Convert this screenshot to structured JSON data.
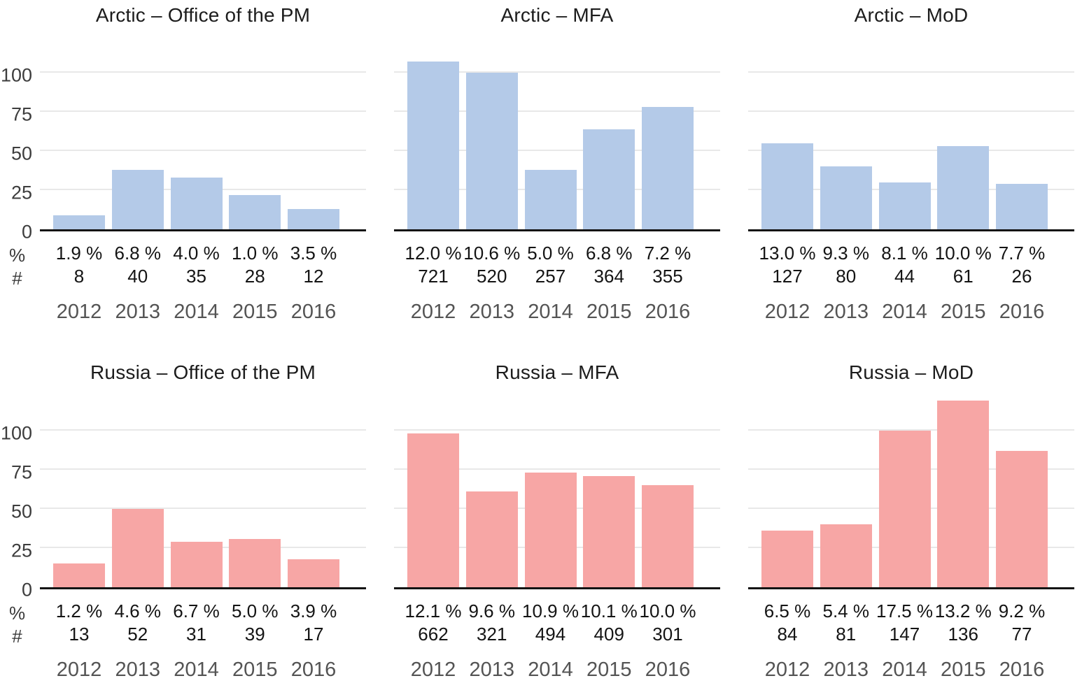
{
  "figure": {
    "pct_row_label": "%",
    "count_row_label": "#",
    "y_ticks": [
      0,
      25,
      50,
      75,
      100
    ],
    "years": [
      "2012",
      "2013",
      "2014",
      "2015",
      "2016"
    ],
    "colors": {
      "arctic_bar": "#b4cae8",
      "russia_bar": "#f7a6a5",
      "gridline": "#e8e8e8",
      "axis_line": "#141414",
      "tick_label": "#3d3d3d",
      "value_label": "#141414",
      "year_label": "#545454",
      "title": "#1c1c1c"
    }
  },
  "chart_data": [
    {
      "type": "bar",
      "title": "Arctic – Office of the PM",
      "region": "Arctic",
      "institution": "Office of the PM",
      "categories": [
        "2012",
        "2013",
        "2014",
        "2015",
        "2016"
      ],
      "values": [
        9,
        38,
        33,
        22,
        13
      ],
      "pct_labels": [
        "1.9 %",
        "6.8 %",
        "4.0 %",
        "1.0 %",
        "3.5 %"
      ],
      "count_labels": [
        "8",
        "40",
        "35",
        "28",
        "12"
      ],
      "bar_color": "#b4cae8",
      "ylim": [
        0,
        121
      ],
      "yticks": [
        0,
        25,
        50,
        75,
        100
      ],
      "grid": true,
      "legend": "none"
    },
    {
      "type": "bar",
      "title": "Arctic – MFA",
      "region": "Arctic",
      "institution": "MFA",
      "categories": [
        "2012",
        "2013",
        "2014",
        "2015",
        "2016"
      ],
      "values": [
        107,
        100,
        38,
        64,
        78
      ],
      "pct_labels": [
        "12.0 %",
        "10.6 %",
        "5.0 %",
        "6.8 %",
        "7.2 %"
      ],
      "count_labels": [
        "721",
        "520",
        "257",
        "364",
        "355"
      ],
      "bar_color": "#b4cae8",
      "ylim": [
        0,
        121
      ],
      "yticks": [
        0,
        25,
        50,
        75,
        100
      ],
      "grid": true,
      "legend": "none"
    },
    {
      "type": "bar",
      "title": "Arctic – MoD",
      "region": "Arctic",
      "institution": "MoD",
      "categories": [
        "2012",
        "2013",
        "2014",
        "2015",
        "2016"
      ],
      "values": [
        55,
        40,
        30,
        53,
        29
      ],
      "pct_labels": [
        "13.0 %",
        "9.3 %",
        "8.1 %",
        "10.0 %",
        "7.7 %"
      ],
      "count_labels": [
        "127",
        "80",
        "44",
        "61",
        "26"
      ],
      "bar_color": "#b4cae8",
      "ylim": [
        0,
        121
      ],
      "yticks": [
        0,
        25,
        50,
        75,
        100
      ],
      "grid": true,
      "legend": "none"
    },
    {
      "type": "bar",
      "title": "Russia – Office of the PM",
      "region": "Russia",
      "institution": "Office of the PM",
      "categories": [
        "2012",
        "2013",
        "2014",
        "2015",
        "2016"
      ],
      "values": [
        15,
        50,
        29,
        31,
        18
      ],
      "pct_labels": [
        "1.2 %",
        "4.6 %",
        "6.7 %",
        "5.0 %",
        "3.9 %"
      ],
      "count_labels": [
        "13",
        "52",
        "31",
        "39",
        "17"
      ],
      "bar_color": "#f7a6a5",
      "ylim": [
        0,
        121
      ],
      "yticks": [
        0,
        25,
        50,
        75,
        100
      ],
      "grid": true,
      "legend": "none"
    },
    {
      "type": "bar",
      "title": "Russia – MFA",
      "region": "Russia",
      "institution": "MFA",
      "categories": [
        "2012",
        "2013",
        "2014",
        "2015",
        "2016"
      ],
      "values": [
        98,
        61,
        73,
        71,
        65
      ],
      "pct_labels": [
        "12.1 %",
        "9.6 %",
        "10.9 %",
        "10.1 %",
        "10.0 %"
      ],
      "count_labels": [
        "662",
        "321",
        "494",
        "409",
        "301"
      ],
      "bar_color": "#f7a6a5",
      "ylim": [
        0,
        121
      ],
      "yticks": [
        0,
        25,
        50,
        75,
        100
      ],
      "grid": true,
      "legend": "none"
    },
    {
      "type": "bar",
      "title": "Russia – MoD",
      "region": "Russia",
      "institution": "MoD",
      "categories": [
        "2012",
        "2013",
        "2014",
        "2015",
        "2016"
      ],
      "values": [
        36,
        40,
        100,
        119,
        87
      ],
      "pct_labels": [
        "6.5 %",
        "5.4 %",
        "17.5 %",
        "13.2 %",
        "9.2 %"
      ],
      "count_labels": [
        "84",
        "81",
        "147",
        "136",
        "77"
      ],
      "bar_color": "#f7a6a5",
      "ylim": [
        0,
        121
      ],
      "yticks": [
        0,
        25,
        50,
        75,
        100
      ],
      "grid": true,
      "legend": "none"
    }
  ]
}
